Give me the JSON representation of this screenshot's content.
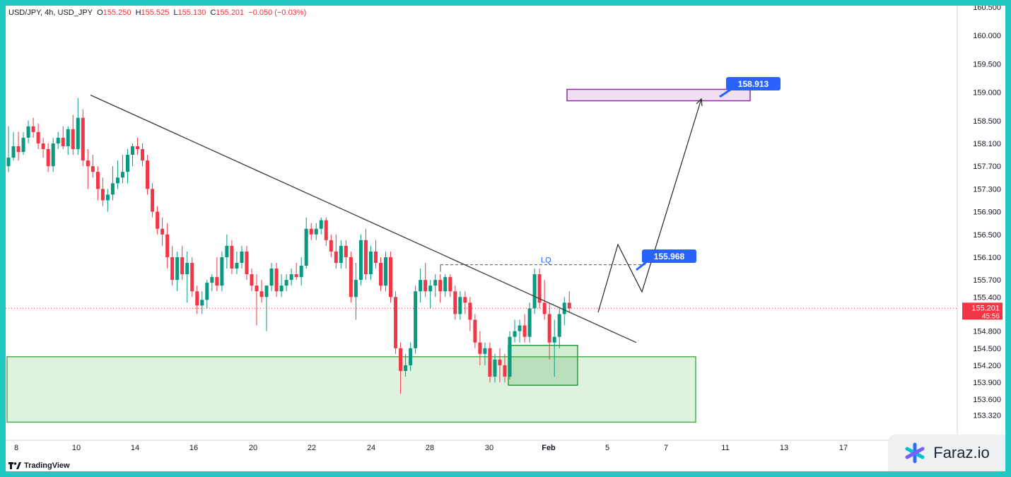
{
  "header": {
    "symbol_line": "USD/JPY, 4h, USD_JPY",
    "o_label": "O",
    "o_value": "155.250",
    "h_label": "H",
    "h_value": "155.525",
    "l_label": "L",
    "l_value": "155.130",
    "c_label": "C",
    "c_value": "155.201",
    "change": "−0.050 (−0.03%)"
  },
  "branding": {
    "tradingview": "TradingView",
    "watermark": "Faraz.io"
  },
  "chart_data": {
    "type": "candlestick",
    "y_ticks": [
      160.5,
      160.0,
      159.5,
      159.0,
      158.5,
      158.1,
      157.7,
      157.3,
      156.9,
      156.5,
      156.1,
      155.7,
      155.4,
      154.8,
      154.5,
      154.2,
      153.9,
      153.6,
      153.32
    ],
    "y_tick_labels": [
      "160.500",
      "160.000",
      "159.500",
      "159.000",
      "158.500",
      "158.100",
      "157.700",
      "157.300",
      "156.900",
      "156.500",
      "156.100",
      "155.700",
      "155.400",
      "154.800",
      "154.500",
      "154.200",
      "153.900",
      "153.600",
      "153.320"
    ],
    "x_labels": [
      "8",
      "10",
      "14",
      "16",
      "20",
      "22",
      "24",
      "28",
      "30",
      "Feb",
      "5",
      "7",
      "11",
      "13",
      "17"
    ],
    "current_price": {
      "value": 155.201,
      "label": "155.201",
      "countdown": "45:56",
      "color": "#f23645"
    },
    "candles": [
      {
        "o": 157.7,
        "h": 158.4,
        "l": 157.6,
        "c": 157.85
      },
      {
        "o": 157.85,
        "h": 158.3,
        "l": 157.8,
        "c": 158.05
      },
      {
        "o": 158.05,
        "h": 158.3,
        "l": 157.8,
        "c": 157.95
      },
      {
        "o": 157.95,
        "h": 158.3,
        "l": 157.9,
        "c": 158.2
      },
      {
        "o": 158.2,
        "h": 158.5,
        "l": 158.1,
        "c": 158.4
      },
      {
        "o": 158.4,
        "h": 158.55,
        "l": 158.2,
        "c": 158.3
      },
      {
        "o": 158.3,
        "h": 158.45,
        "l": 158.0,
        "c": 158.1
      },
      {
        "o": 158.1,
        "h": 158.2,
        "l": 157.85,
        "c": 158.0
      },
      {
        "o": 158.0,
        "h": 158.1,
        "l": 157.6,
        "c": 157.7
      },
      {
        "o": 157.7,
        "h": 158.2,
        "l": 157.6,
        "c": 158.1
      },
      {
        "o": 158.1,
        "h": 158.3,
        "l": 158.0,
        "c": 158.2
      },
      {
        "o": 158.2,
        "h": 158.4,
        "l": 158.0,
        "c": 158.05
      },
      {
        "o": 158.05,
        "h": 158.4,
        "l": 157.9,
        "c": 158.35
      },
      {
        "o": 158.35,
        "h": 158.6,
        "l": 157.9,
        "c": 158.0
      },
      {
        "o": 158.0,
        "h": 158.9,
        "l": 157.9,
        "c": 158.55
      },
      {
        "o": 158.55,
        "h": 158.7,
        "l": 157.7,
        "c": 157.8
      },
      {
        "o": 157.8,
        "h": 158.0,
        "l": 157.3,
        "c": 157.7
      },
      {
        "o": 157.7,
        "h": 157.9,
        "l": 157.5,
        "c": 157.6
      },
      {
        "o": 157.6,
        "h": 157.7,
        "l": 157.1,
        "c": 157.3
      },
      {
        "o": 157.3,
        "h": 157.5,
        "l": 157.0,
        "c": 157.1
      },
      {
        "o": 157.1,
        "h": 157.3,
        "l": 156.9,
        "c": 157.2
      },
      {
        "o": 157.2,
        "h": 157.7,
        "l": 157.1,
        "c": 157.4
      },
      {
        "o": 157.4,
        "h": 157.8,
        "l": 157.3,
        "c": 157.5
      },
      {
        "o": 157.5,
        "h": 157.9,
        "l": 157.4,
        "c": 157.6
      },
      {
        "o": 157.6,
        "h": 158.0,
        "l": 157.4,
        "c": 157.9
      },
      {
        "o": 157.9,
        "h": 158.1,
        "l": 157.7,
        "c": 158.05
      },
      {
        "o": 158.05,
        "h": 158.2,
        "l": 157.9,
        "c": 158.0
      },
      {
        "o": 158.0,
        "h": 158.1,
        "l": 157.7,
        "c": 157.8
      },
      {
        "o": 157.8,
        "h": 157.9,
        "l": 157.2,
        "c": 157.3
      },
      {
        "o": 157.3,
        "h": 157.4,
        "l": 156.8,
        "c": 156.9
      },
      {
        "o": 156.9,
        "h": 157.0,
        "l": 156.5,
        "c": 156.6
      },
      {
        "o": 156.6,
        "h": 156.8,
        "l": 156.3,
        "c": 156.5
      },
      {
        "o": 156.5,
        "h": 156.7,
        "l": 155.9,
        "c": 156.1
      },
      {
        "o": 156.1,
        "h": 156.3,
        "l": 155.6,
        "c": 155.7
      },
      {
        "o": 155.7,
        "h": 156.2,
        "l": 155.5,
        "c": 156.1
      },
      {
        "o": 156.1,
        "h": 156.3,
        "l": 155.7,
        "c": 155.8
      },
      {
        "o": 155.8,
        "h": 156.2,
        "l": 155.3,
        "c": 156.0
      },
      {
        "o": 156.0,
        "h": 156.1,
        "l": 155.4,
        "c": 155.5
      },
      {
        "o": 155.5,
        "h": 155.6,
        "l": 155.1,
        "c": 155.25
      },
      {
        "o": 155.25,
        "h": 155.5,
        "l": 155.1,
        "c": 155.35
      },
      {
        "o": 155.35,
        "h": 155.7,
        "l": 155.2,
        "c": 155.65
      },
      {
        "o": 155.65,
        "h": 155.8,
        "l": 155.5,
        "c": 155.75
      },
      {
        "o": 155.75,
        "h": 156.1,
        "l": 155.5,
        "c": 155.6
      },
      {
        "o": 155.6,
        "h": 156.2,
        "l": 155.5,
        "c": 156.1
      },
      {
        "o": 156.1,
        "h": 156.5,
        "l": 155.9,
        "c": 156.3
      },
      {
        "o": 156.3,
        "h": 156.4,
        "l": 155.8,
        "c": 155.9
      },
      {
        "o": 155.9,
        "h": 156.2,
        "l": 155.8,
        "c": 156.0
      },
      {
        "o": 156.0,
        "h": 156.3,
        "l": 155.9,
        "c": 156.2
      },
      {
        "o": 156.2,
        "h": 156.3,
        "l": 155.7,
        "c": 155.8
      },
      {
        "o": 155.8,
        "h": 155.9,
        "l": 155.5,
        "c": 155.6
      },
      {
        "o": 155.6,
        "h": 155.8,
        "l": 154.9,
        "c": 155.5
      },
      {
        "o": 155.5,
        "h": 155.7,
        "l": 155.3,
        "c": 155.4
      },
      {
        "o": 155.4,
        "h": 155.6,
        "l": 154.8,
        "c": 155.6
      },
      {
        "o": 155.6,
        "h": 156.0,
        "l": 155.5,
        "c": 155.9
      },
      {
        "o": 155.9,
        "h": 156.0,
        "l": 155.4,
        "c": 155.5
      },
      {
        "o": 155.5,
        "h": 155.8,
        "l": 155.4,
        "c": 155.6
      },
      {
        "o": 155.6,
        "h": 155.8,
        "l": 155.5,
        "c": 155.7
      },
      {
        "o": 155.7,
        "h": 155.9,
        "l": 155.6,
        "c": 155.8
      },
      {
        "o": 155.8,
        "h": 156.0,
        "l": 155.7,
        "c": 155.75
      },
      {
        "o": 155.75,
        "h": 156.1,
        "l": 155.6,
        "c": 155.95
      },
      {
        "o": 155.95,
        "h": 156.8,
        "l": 155.9,
        "c": 156.6
      },
      {
        "o": 156.6,
        "h": 156.7,
        "l": 156.4,
        "c": 156.5
      },
      {
        "o": 156.5,
        "h": 156.7,
        "l": 156.4,
        "c": 156.6
      },
      {
        "o": 156.6,
        "h": 156.8,
        "l": 156.5,
        "c": 156.75
      },
      {
        "o": 156.75,
        "h": 156.8,
        "l": 156.3,
        "c": 156.4
      },
      {
        "o": 156.4,
        "h": 156.5,
        "l": 156.1,
        "c": 156.2
      },
      {
        "o": 156.2,
        "h": 156.5,
        "l": 155.9,
        "c": 156.0
      },
      {
        "o": 156.0,
        "h": 156.4,
        "l": 155.9,
        "c": 156.3
      },
      {
        "o": 156.3,
        "h": 156.4,
        "l": 155.9,
        "c": 156.1
      },
      {
        "o": 156.1,
        "h": 156.2,
        "l": 155.3,
        "c": 155.4
      },
      {
        "o": 155.4,
        "h": 156.0,
        "l": 155.0,
        "c": 155.7
      },
      {
        "o": 155.7,
        "h": 156.5,
        "l": 155.6,
        "c": 156.4
      },
      {
        "o": 156.4,
        "h": 156.6,
        "l": 155.7,
        "c": 155.8
      },
      {
        "o": 155.8,
        "h": 156.3,
        "l": 155.7,
        "c": 156.2
      },
      {
        "o": 156.2,
        "h": 156.4,
        "l": 155.9,
        "c": 156.0
      },
      {
        "o": 156.0,
        "h": 156.1,
        "l": 155.5,
        "c": 155.6
      },
      {
        "o": 155.6,
        "h": 156.2,
        "l": 155.5,
        "c": 156.1
      },
      {
        "o": 156.1,
        "h": 156.2,
        "l": 155.3,
        "c": 155.4
      },
      {
        "o": 155.4,
        "h": 155.5,
        "l": 154.4,
        "c": 154.5
      },
      {
        "o": 154.5,
        "h": 154.6,
        "l": 153.7,
        "c": 154.1
      },
      {
        "o": 154.1,
        "h": 154.4,
        "l": 154.0,
        "c": 154.2
      },
      {
        "o": 154.2,
        "h": 154.6,
        "l": 154.1,
        "c": 154.5
      },
      {
        "o": 154.5,
        "h": 155.6,
        "l": 154.4,
        "c": 155.5
      },
      {
        "o": 155.5,
        "h": 155.9,
        "l": 155.3,
        "c": 155.7
      },
      {
        "o": 155.7,
        "h": 156.0,
        "l": 155.4,
        "c": 155.5
      },
      {
        "o": 155.5,
        "h": 155.7,
        "l": 155.2,
        "c": 155.6
      },
      {
        "o": 155.6,
        "h": 155.8,
        "l": 155.4,
        "c": 155.7
      },
      {
        "o": 155.7,
        "h": 155.8,
        "l": 155.3,
        "c": 155.5
      },
      {
        "o": 155.5,
        "h": 155.8,
        "l": 155.4,
        "c": 155.75
      },
      {
        "o": 155.75,
        "h": 155.8,
        "l": 155.4,
        "c": 155.5
      },
      {
        "o": 155.5,
        "h": 155.6,
        "l": 155.0,
        "c": 155.1
      },
      {
        "o": 155.1,
        "h": 155.5,
        "l": 155.0,
        "c": 155.4
      },
      {
        "o": 155.4,
        "h": 155.5,
        "l": 155.1,
        "c": 155.3
      },
      {
        "o": 155.3,
        "h": 155.4,
        "l": 154.8,
        "c": 155.0
      },
      {
        "o": 155.0,
        "h": 155.1,
        "l": 154.5,
        "c": 154.6
      },
      {
        "o": 154.6,
        "h": 154.8,
        "l": 154.2,
        "c": 154.4
      },
      {
        "o": 154.4,
        "h": 154.6,
        "l": 154.2,
        "c": 154.5
      },
      {
        "o": 154.5,
        "h": 154.6,
        "l": 153.9,
        "c": 154.0
      },
      {
        "o": 154.0,
        "h": 154.4,
        "l": 153.9,
        "c": 154.3
      },
      {
        "o": 154.3,
        "h": 154.5,
        "l": 153.9,
        "c": 154.2
      },
      {
        "o": 154.2,
        "h": 154.4,
        "l": 153.9,
        "c": 154.0
      },
      {
        "o": 154.0,
        "h": 154.8,
        "l": 153.95,
        "c": 154.7
      },
      {
        "o": 154.7,
        "h": 155.0,
        "l": 154.6,
        "c": 154.8
      },
      {
        "o": 154.8,
        "h": 155.0,
        "l": 154.6,
        "c": 154.9
      },
      {
        "o": 154.9,
        "h": 155.1,
        "l": 154.6,
        "c": 154.7
      },
      {
        "o": 154.7,
        "h": 155.3,
        "l": 154.6,
        "c": 155.2
      },
      {
        "o": 155.2,
        "h": 155.9,
        "l": 155.1,
        "c": 155.8
      },
      {
        "o": 155.8,
        "h": 155.9,
        "l": 155.2,
        "c": 155.3
      },
      {
        "o": 155.3,
        "h": 155.7,
        "l": 155.0,
        "c": 155.1
      },
      {
        "o": 155.1,
        "h": 155.3,
        "l": 154.3,
        "c": 154.6
      },
      {
        "o": 154.6,
        "h": 155.0,
        "l": 154.0,
        "c": 154.7
      },
      {
        "o": 154.7,
        "h": 155.2,
        "l": 154.5,
        "c": 155.1
      },
      {
        "o": 155.1,
        "h": 155.4,
        "l": 154.9,
        "c": 155.3
      },
      {
        "o": 155.3,
        "h": 155.5,
        "l": 155.13,
        "c": 155.2
      }
    ],
    "annotations": {
      "demand_zone": {
        "from": 153.2,
        "to": 154.35,
        "color": "#4caf50"
      },
      "small_zone": {
        "from": 153.85,
        "to": 154.55,
        "color": "#4caf50"
      },
      "target_zone": {
        "from": 158.85,
        "to": 159.05,
        "color": "#9c27b0"
      },
      "liquidity_level": {
        "price": 155.968,
        "label": "LQ"
      },
      "target_1": {
        "label": "155.968"
      },
      "target_2": {
        "label": "158.913"
      },
      "trendline": {
        "from_price": 158.95,
        "to_price": 154.6
      }
    }
  }
}
